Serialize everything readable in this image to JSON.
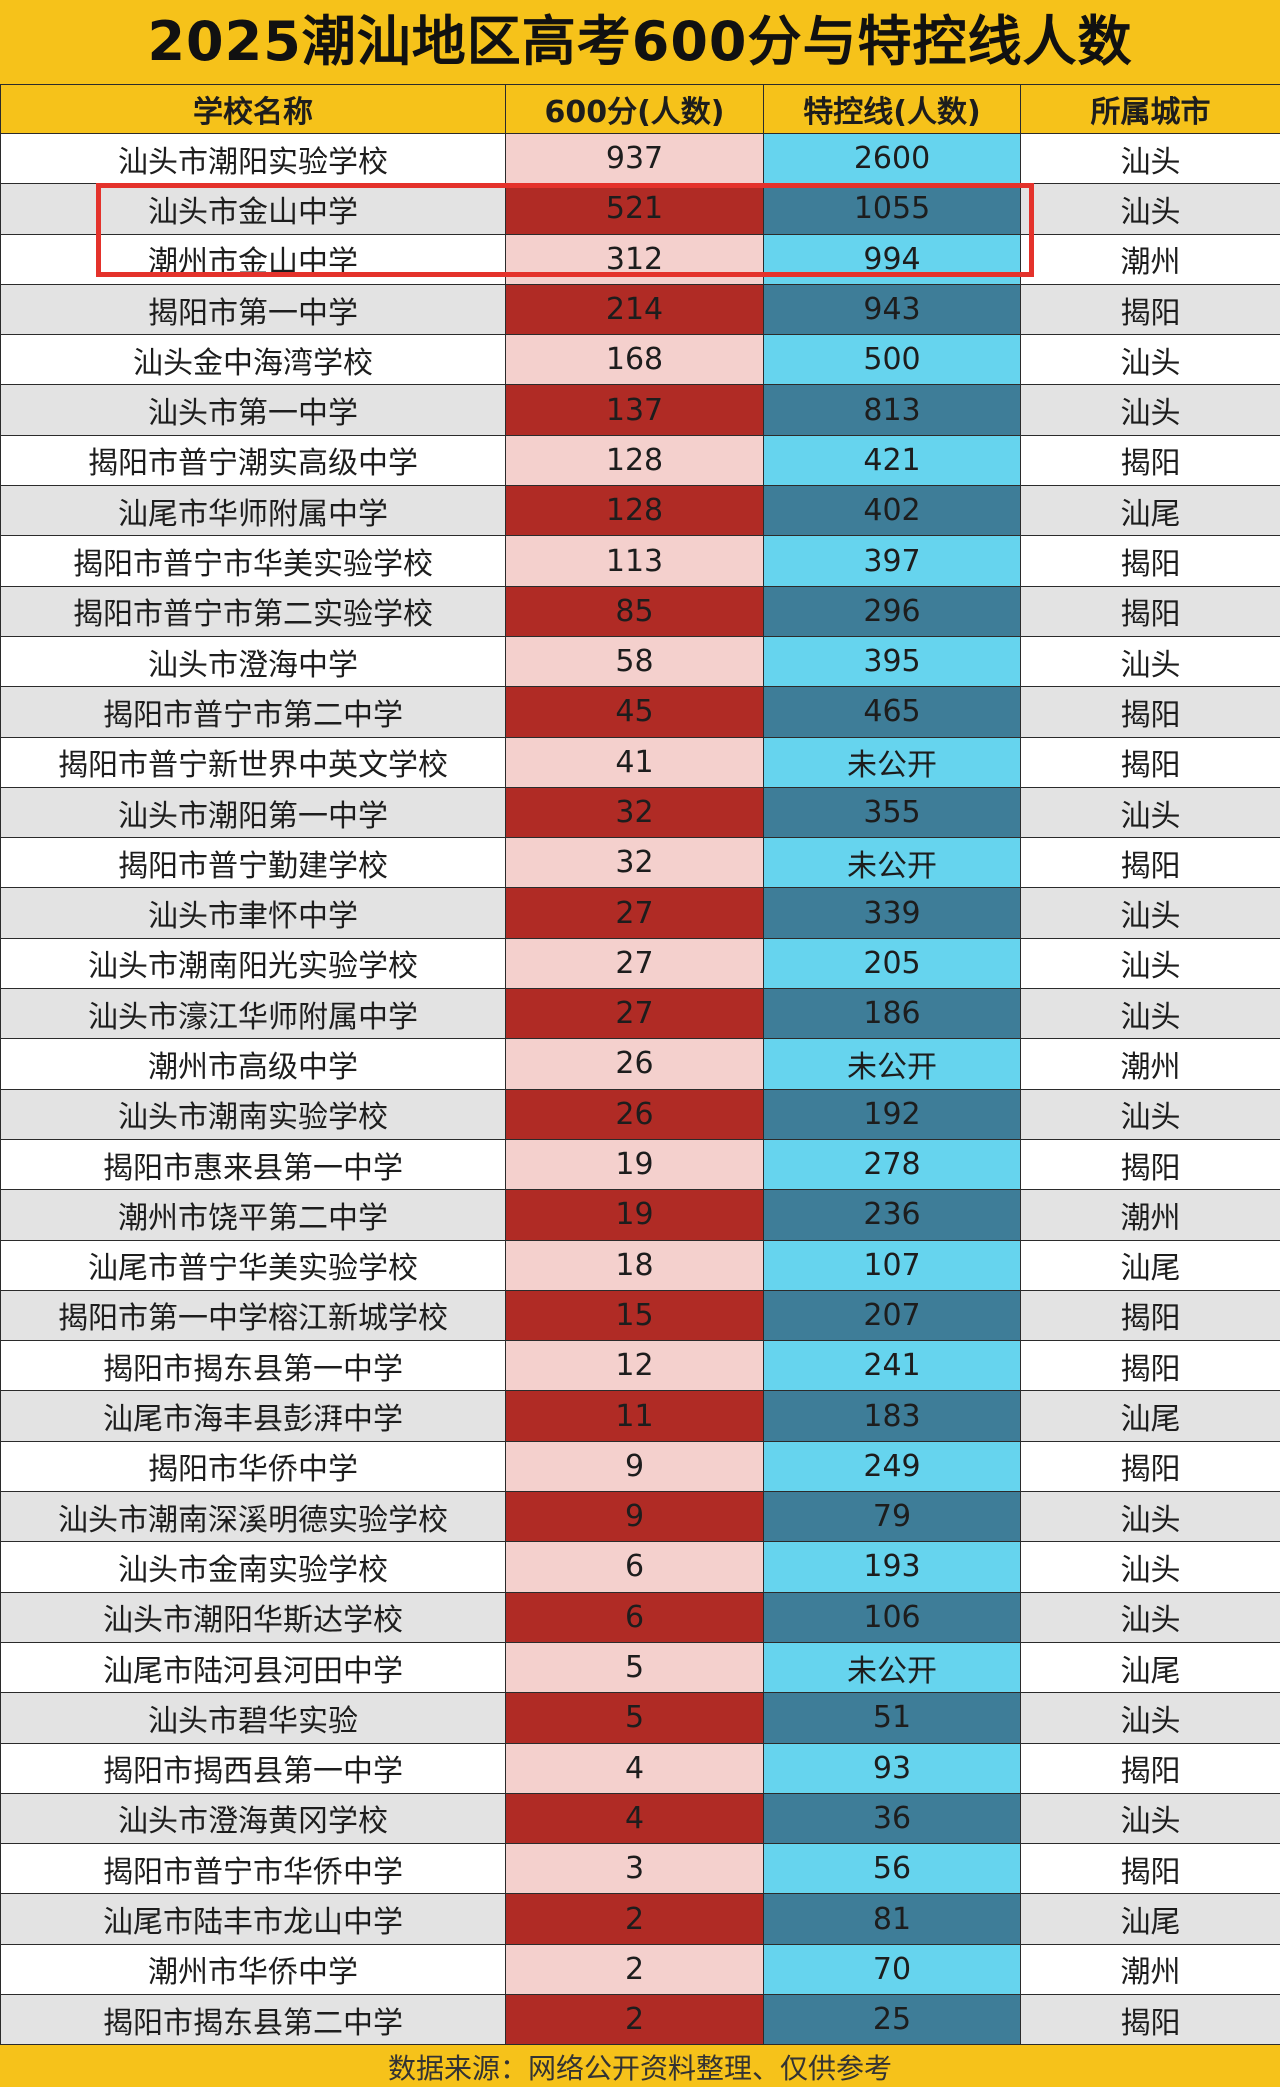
{
  "title": "2025潮汕地区高考600分与特控线人数",
  "headers": [
    "学校名称",
    "600分(人数)",
    "特控线(人数)",
    "所属城市"
  ],
  "rows": [
    [
      "汕头市潮阳实验学校",
      "937",
      "2600",
      "汕头"
    ],
    [
      "汕头市金山中学",
      "521",
      "1055",
      "汕头"
    ],
    [
      "潮州市金山中学",
      "312",
      "994",
      "潮州"
    ],
    [
      "揭阳市第一中学",
      "214",
      "943",
      "揭阳"
    ],
    [
      "汕头金中海湾学校",
      "168",
      "500",
      "汕头"
    ],
    [
      "汕头市第一中学",
      "137",
      "813",
      "汕头"
    ],
    [
      "揭阳市普宁潮实高级中学",
      "128",
      "421",
      "揭阳"
    ],
    [
      "汕尾市华师附属中学",
      "128",
      "402",
      "汕尾"
    ],
    [
      "揭阳市普宁市华美实验学校",
      "113",
      "397",
      "揭阳"
    ],
    [
      "揭阳市普宁市第二实验学校",
      "85",
      "296",
      "揭阳"
    ],
    [
      "汕头市澄海中学",
      "58",
      "395",
      "汕头"
    ],
    [
      "揭阳市普宁市第二中学",
      "45",
      "465",
      "揭阳"
    ],
    [
      "揭阳市普宁新世界中英文学校",
      "41",
      "未公开",
      "揭阳"
    ],
    [
      "汕头市潮阳第一中学",
      "32",
      "355",
      "汕头"
    ],
    [
      "揭阳市普宁勤建学校",
      "32",
      "未公开",
      "揭阳"
    ],
    [
      "汕头市聿怀中学",
      "27",
      "339",
      "汕头"
    ],
    [
      "汕头市潮南阳光实验学校",
      "27",
      "205",
      "汕头"
    ],
    [
      "汕头市濠江华师附属中学",
      "27",
      "186",
      "汕头"
    ],
    [
      "潮州市高级中学",
      "26",
      "未公开",
      "潮州"
    ],
    [
      "汕头市潮南实验学校",
      "26",
      "192",
      "汕头"
    ],
    [
      "揭阳市惠来县第一中学",
      "19",
      "278",
      "揭阳"
    ],
    [
      "潮州市饶平第二中学",
      "19",
      "236",
      "潮州"
    ],
    [
      "汕尾市普宁华美实验学校",
      "18",
      "107",
      "汕尾"
    ],
    [
      "揭阳市第一中学榕江新城学校",
      "15",
      "207",
      "揭阳"
    ],
    [
      "揭阳市揭东县第一中学",
      "12",
      "241",
      "揭阳"
    ],
    [
      "汕尾市海丰县彭湃中学",
      "11",
      "183",
      "汕尾"
    ],
    [
      "揭阳市华侨中学",
      "9",
      "249",
      "揭阳"
    ],
    [
      "汕头市潮南深溪明德实验学校",
      "9",
      "79",
      "汕头"
    ],
    [
      "汕头市金南实验学校",
      "6",
      "193",
      "汕头"
    ],
    [
      "汕头市潮阳华斯达学校",
      "6",
      "106",
      "汕头"
    ],
    [
      "汕尾市陆河县河田中学",
      "5",
      "未公开",
      "汕尾"
    ],
    [
      "汕头市碧华实验",
      "5",
      "51",
      "汕头"
    ],
    [
      "揭阳市揭西县第一中学",
      "4",
      "93",
      "揭阳"
    ],
    [
      "汕头市澄海黄冈学校",
      "4",
      "36",
      "汕头"
    ],
    [
      "揭阳市普宁市华侨中学",
      "3",
      "56",
      "揭阳"
    ],
    [
      "汕尾市陆丰市龙山中学",
      "2",
      "81",
      "汕尾"
    ],
    [
      "潮州市华侨中学",
      "2",
      "70",
      "潮州"
    ],
    [
      "揭阳市揭东县第二中学",
      "2",
      "25",
      "揭阳"
    ]
  ],
  "footer": "数据来源：网络公开资料整理、仅供参考",
  "colors": {
    "header_bg": "#f6c21a",
    "s600_light": "#f4d0cd",
    "s600_dark": "#b02b25",
    "tk_light": "#66d4ee",
    "tk_dark": "#3e7d98",
    "highlight_border": "#e4322b"
  }
}
